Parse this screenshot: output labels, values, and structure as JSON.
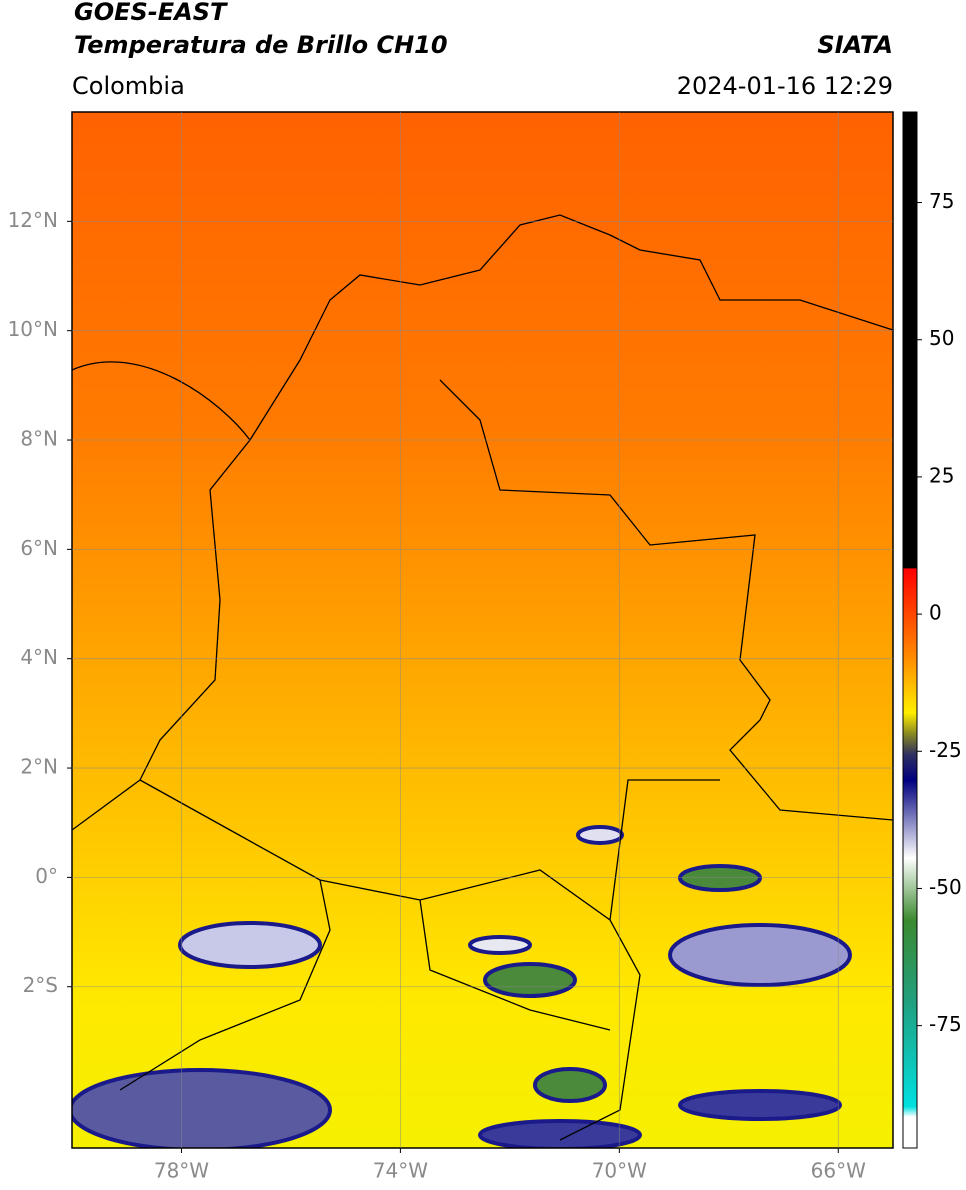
{
  "header": {
    "satellite": "GOES-EAST",
    "product": "Temperatura de Brillo CH10",
    "source": "SIATA",
    "region": "Colombia",
    "datetime": "2024-01-16 12:29"
  },
  "map": {
    "xlim": [
      -80,
      -65
    ],
    "ylim": [
      -4.95,
      14
    ],
    "xticks": [
      {
        "value": -78,
        "label": "78°W"
      },
      {
        "value": -74,
        "label": "74°W"
      },
      {
        "value": -70,
        "label": "70°W"
      },
      {
        "value": -66,
        "label": "66°W"
      }
    ],
    "yticks": [
      {
        "value": 12,
        "label": "12°N"
      },
      {
        "value": 10,
        "label": "10°N"
      },
      {
        "value": 8,
        "label": "8°N"
      },
      {
        "value": 6,
        "label": "6°N"
      },
      {
        "value": 4,
        "label": "4°N"
      },
      {
        "value": 2,
        "label": "2°N"
      },
      {
        "value": 0,
        "label": "0°"
      },
      {
        "value": -2,
        "label": "2°S"
      }
    ],
    "grid": true
  },
  "colorbar": {
    "clim": [
      -97.3,
      91.5
    ],
    "ticks": [
      75,
      50,
      25,
      0,
      -25,
      -50,
      -75
    ]
  }
}
